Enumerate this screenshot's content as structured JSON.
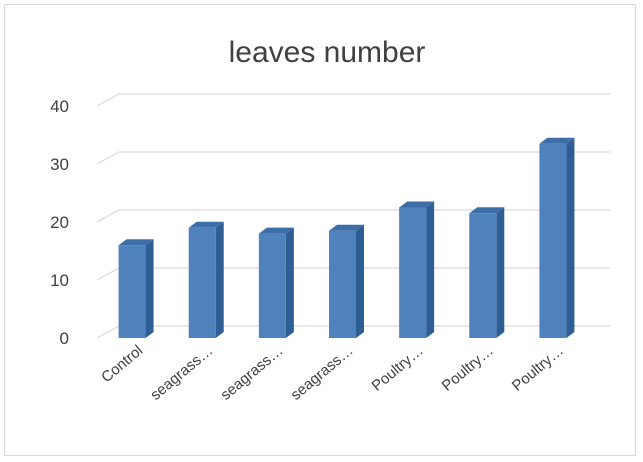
{
  "chart_data": {
    "type": "bar",
    "title": "leaves number",
    "categories": [
      "Control",
      "seagrass…",
      "seagrass…",
      "seagrass…",
      "Poultry…",
      "Poultry…",
      "Poultry…"
    ],
    "values": [
      16,
      19,
      18,
      18.5,
      22.5,
      21.5,
      33.5
    ],
    "yticks": [
      0,
      10,
      20,
      30,
      40
    ],
    "ylim": [
      0,
      40
    ],
    "xlabel": "",
    "ylabel": "",
    "grid": true,
    "style": "3d-column",
    "bar_color": "#4f81bd",
    "bar_side_color": "#2f5e94",
    "bar_top_color": "#3d6ea8",
    "gridline_color": "#d9d9d9",
    "text_color": "#404040"
  }
}
